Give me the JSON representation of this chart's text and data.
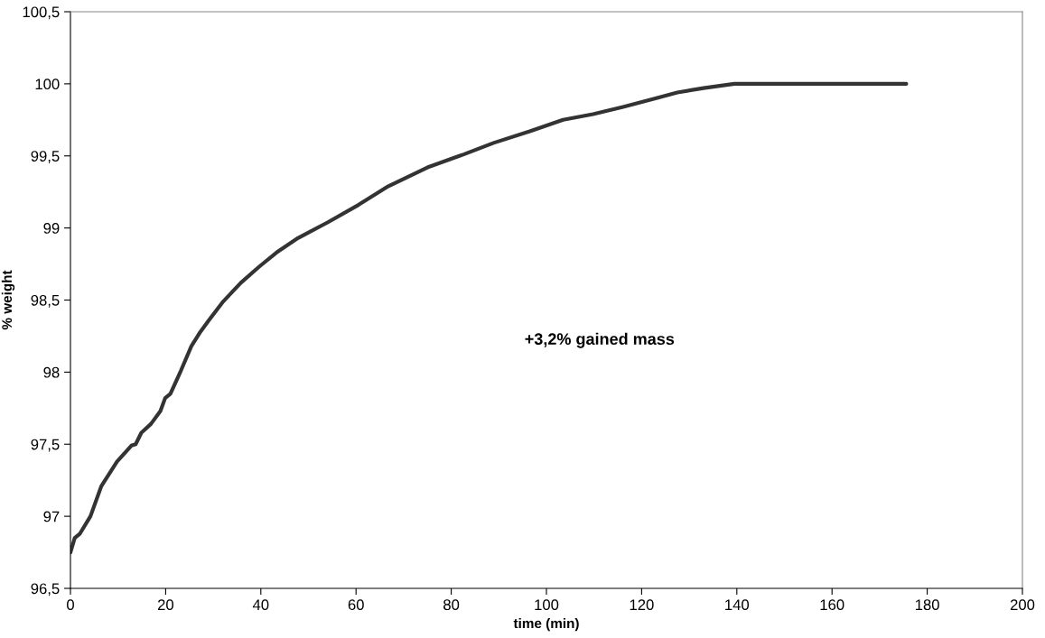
{
  "chart_data": {
    "type": "line",
    "xlabel": "time (min)",
    "ylabel": "% weight",
    "annotations": [
      "+3,2% gained mass"
    ],
    "x": [
      0,
      0.9,
      2,
      4.2,
      6.5,
      9.8,
      12.8,
      13.7,
      14.9,
      16.9,
      18.9,
      19.9,
      21,
      23.2,
      25.4,
      27.3,
      29.1,
      32.1,
      35.8,
      39.6,
      43.3,
      47.8,
      54.1,
      60.5,
      66.8,
      75,
      82.6,
      88.9,
      96.5,
      103.5,
      109.8,
      116.1,
      123.1,
      127.5,
      133,
      139.5,
      175.6
    ],
    "series": [
      {
        "color": "#333333",
        "values": [
          96.75,
          96.85,
          96.88,
          97.0,
          97.21,
          97.38,
          97.49,
          97.5,
          97.58,
          97.64,
          97.73,
          97.82,
          97.85,
          98.01,
          98.18,
          98.28,
          98.36,
          98.49,
          98.62,
          98.73,
          98.83,
          98.93,
          99.04,
          99.16,
          99.29,
          99.42,
          99.51,
          99.59,
          99.67,
          99.75,
          99.79,
          99.84,
          99.9,
          99.94,
          99.97,
          100,
          100
        ]
      }
    ],
    "xlim": [
      0,
      200
    ],
    "xticks": [
      0,
      20,
      40,
      60,
      80,
      100,
      120,
      140,
      160,
      180,
      200
    ],
    "ylim": [
      96.5,
      100.5
    ],
    "yticks": [
      {
        "value": 96.5,
        "label": "96,5"
      },
      97,
      {
        "value": 97.5,
        "label": "97,5"
      },
      98,
      {
        "value": 98.5,
        "label": "98,5"
      },
      99,
      {
        "value": 99.5,
        "label": "99,5"
      },
      100,
      {
        "value": 100.5,
        "label": "100,5"
      }
    ],
    "grid": false,
    "marker": "none",
    "line_style": "solid"
  }
}
